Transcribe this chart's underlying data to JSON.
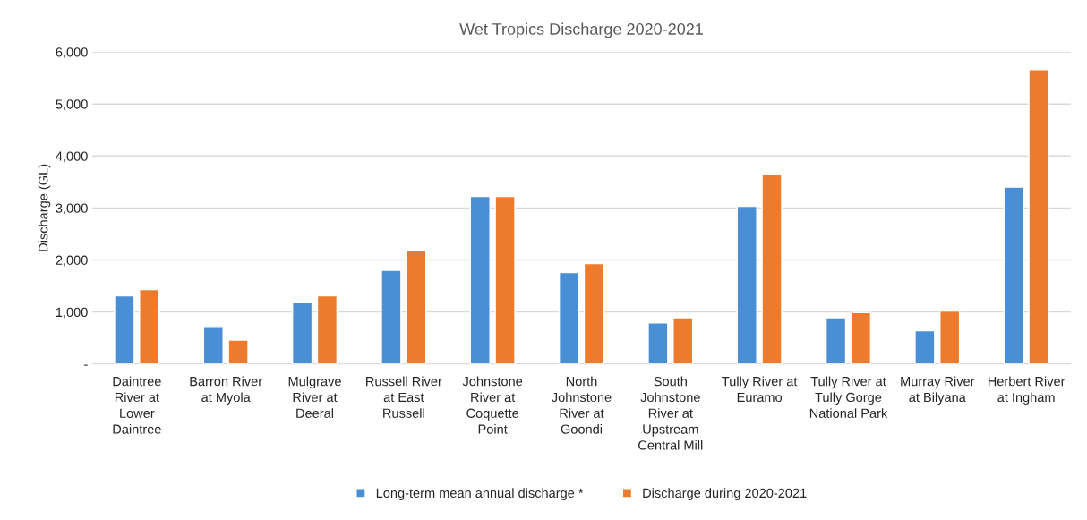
{
  "chart_data": {
    "type": "bar",
    "title": "Wet Tropics Discharge 2020-2021",
    "ylabel": "Discharge (GL)",
    "categories": [
      "Daintree River at Lower Daintree",
      "Barron River at Myola",
      "Mulgrave River at Deeral",
      "Russell River at East Russell",
      "Johnstone River at Coquette Point",
      "North Johnstone River at Goondi",
      "South Johnstone River at Upstream Central Mill",
      "Tully River at Euramo",
      "Tully River at Tully Gorge National Park",
      "Murray River at Bilyana",
      "Herbert River at Ingham"
    ],
    "series": [
      {
        "name": "Long-term mean annual discharge *",
        "color": "#4a8fd6",
        "values": [
          1310,
          720,
          1190,
          1800,
          3220,
          1760,
          790,
          3030,
          890,
          640,
          3400
        ]
      },
      {
        "name": "Discharge during 2020-2021",
        "color": "#ee7b2d",
        "values": [
          1430,
          460,
          1310,
          2180,
          3220,
          1930,
          890,
          3640,
          990,
          1020,
          5660
        ]
      }
    ],
    "ylim": [
      0,
      6000
    ],
    "yticks": [
      {
        "value": 0,
        "label": "-"
      },
      {
        "value": 1000,
        "label": "1,000"
      },
      {
        "value": 2000,
        "label": "2,000"
      },
      {
        "value": 3000,
        "label": "3,000"
      },
      {
        "value": 4000,
        "label": "4,000"
      },
      {
        "value": 5000,
        "label": "5,000"
      },
      {
        "value": 6000,
        "label": "6,000"
      }
    ],
    "grid": "y",
    "legend": "bottom"
  }
}
